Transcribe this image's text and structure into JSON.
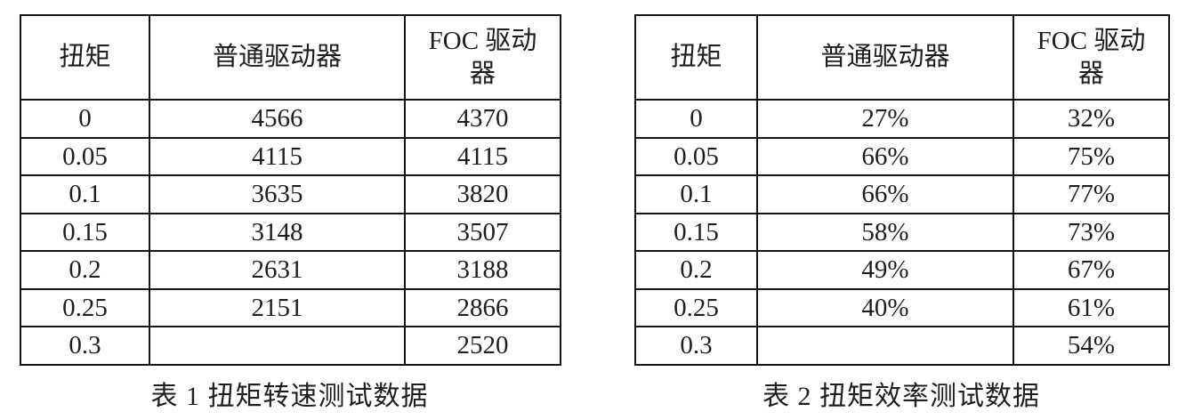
{
  "page": {
    "background": "#ffffff",
    "text_color": "#1e1e1e",
    "border_color": "#161616"
  },
  "tables": [
    {
      "headers": [
        "扭矩",
        "普通驱动器",
        "FOC 驱动器"
      ],
      "rows": [
        [
          "0",
          "4566",
          "4370"
        ],
        [
          "0.05",
          "4115",
          "4115"
        ],
        [
          "0.1",
          "3635",
          "3820"
        ],
        [
          "0.15",
          "3148",
          "3507"
        ],
        [
          "0.2",
          "2631",
          "3188"
        ],
        [
          "0.25",
          "2151",
          "2866"
        ],
        [
          "0.3",
          "",
          "2520"
        ]
      ],
      "caption": "表 1 扭矩转速测试数据"
    },
    {
      "headers": [
        "扭矩",
        "普通驱动器",
        "FOC 驱动器"
      ],
      "rows": [
        [
          "0",
          "27%",
          "32%"
        ],
        [
          "0.05",
          "66%",
          "75%"
        ],
        [
          "0.1",
          "66%",
          "77%"
        ],
        [
          "0.15",
          "58%",
          "73%"
        ],
        [
          "0.2",
          "49%",
          "67%"
        ],
        [
          "0.25",
          "40%",
          "61%"
        ],
        [
          "0.3",
          "",
          "54%"
        ]
      ],
      "caption": "表 2 扭矩效率测试数据"
    }
  ]
}
